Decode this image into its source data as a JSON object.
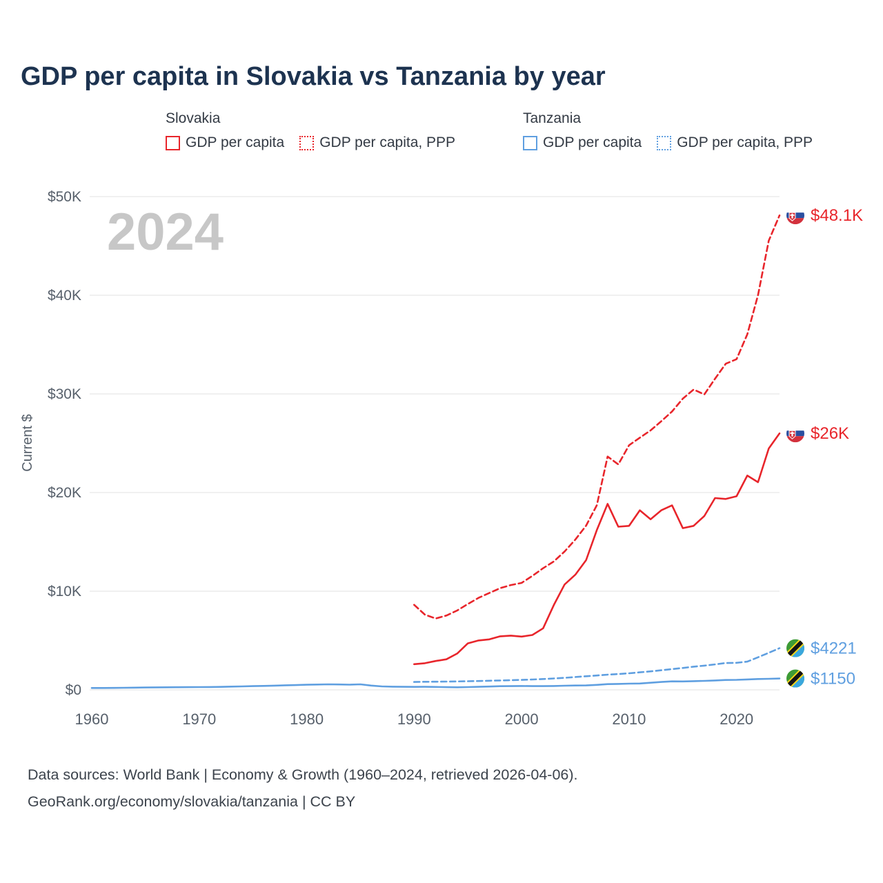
{
  "title": "GDP per capita in Slovakia vs Tanzania by year",
  "watermark": "2024",
  "colors": {
    "slovakia": "#e8252b",
    "tanzania": "#5f9fe0",
    "title": "#1d3350",
    "grid": "#e8e8e8",
    "tick_text": "#57606b",
    "watermark": "#c7c7c7"
  },
  "legend": {
    "groups": [
      {
        "country": "Slovakia",
        "color": "#e8252b",
        "items": [
          {
            "label": "GDP per capita",
            "style": "solid"
          },
          {
            "label": "GDP per capita, PPP",
            "style": "dotted"
          }
        ]
      },
      {
        "country": "Tanzania",
        "color": "#5f9fe0",
        "items": [
          {
            "label": "GDP per capita",
            "style": "solid"
          },
          {
            "label": "GDP per capita, PPP",
            "style": "dotted"
          }
        ]
      }
    ]
  },
  "chart_data": {
    "type": "line",
    "title": "GDP per capita in Slovakia vs Tanzania by year",
    "xlabel": "",
    "ylabel": "Current $",
    "ylim": [
      0,
      50000
    ],
    "xlim": [
      1958,
      2025
    ],
    "grid": "horizontal",
    "x_ticks": [
      1960,
      1970,
      1980,
      1990,
      2000,
      2010,
      2020
    ],
    "y_ticks": [
      {
        "value": 0,
        "label": "$0"
      },
      {
        "value": 10000,
        "label": "$10K"
      },
      {
        "value": 20000,
        "label": "$20K"
      },
      {
        "value": 30000,
        "label": "$30K"
      },
      {
        "value": 40000,
        "label": "$40K"
      },
      {
        "value": 50000,
        "label": "$50K"
      }
    ],
    "series": [
      {
        "id": "tanzania-gdp-ppp",
        "name": "Tanzania GDP per capita, PPP",
        "color": "#5f9fe0",
        "dash": "dashed",
        "flag": "tanzania",
        "start_year": 1990,
        "end_label": "$4221",
        "values": [
          800,
          818,
          828,
          838,
          852,
          872,
          898,
          922,
          948,
          978,
          1008,
          1052,
          1098,
          1152,
          1218,
          1298,
          1378,
          1458,
          1538,
          1598,
          1678,
          1778,
          1872,
          1988,
          2108,
          2218,
          2348,
          2458,
          2578,
          2718,
          2738,
          2858,
          3298,
          3758,
          4221
        ]
      },
      {
        "id": "tanzania-gdp",
        "name": "Tanzania GDP per capita",
        "color": "#5f9fe0",
        "dash": "solid",
        "flag": "tanzania",
        "start_year": 1960,
        "end_label": "$1150",
        "values": [
          190,
          186,
          199,
          213,
          224,
          236,
          249,
          256,
          264,
          271,
          281,
          287,
          301,
          329,
          351,
          379,
          401,
          429,
          459,
          481,
          519,
          539,
          561,
          546,
          521,
          558,
          431,
          352,
          321,
          309,
          301,
          311,
          291,
          272,
          262,
          281,
          309,
          339,
          369,
          381,
          391,
          381,
          379,
          391,
          419,
          441,
          451,
          501,
          579,
          599,
          629,
          641,
          719,
          799,
          859,
          851,
          879,
          909,
          949,
          999,
          1011,
          1059,
          1099,
          1121,
          1150
        ]
      },
      {
        "id": "slovakia-gdp-ppp",
        "name": "Slovakia GDP per capita, PPP",
        "color": "#e8252b",
        "dash": "dashed",
        "flag": "slovakia",
        "start_year": 1990,
        "end_label": "$48.1K",
        "values": [
          8620,
          7620,
          7230,
          7530,
          8040,
          8700,
          9330,
          9820,
          10310,
          10620,
          10840,
          11550,
          12330,
          13020,
          14020,
          15230,
          16640,
          18720,
          23650,
          22850,
          24800,
          25560,
          26300,
          27230,
          28220,
          29520,
          30440,
          29950,
          31540,
          33060,
          33520,
          36040,
          40010,
          45530,
          48100
        ]
      },
      {
        "id": "slovakia-gdp",
        "name": "Slovakia GDP per capita",
        "color": "#e8252b",
        "dash": "solid",
        "flag": "slovakia",
        "start_year": 1990,
        "end_label": "$26K",
        "values": [
          2600,
          2700,
          2920,
          3100,
          3680,
          4710,
          5010,
          5120,
          5430,
          5500,
          5400,
          5560,
          6240,
          8610,
          10680,
          11670,
          13150,
          16200,
          18850,
          16540,
          16620,
          18200,
          17290,
          18200,
          18700,
          16390,
          16620,
          17620,
          19440,
          19350,
          19620,
          21720,
          21050,
          24470,
          26000
        ]
      }
    ],
    "legend_position": "top"
  },
  "footer": {
    "line1": "Data sources: World Bank | Economy & Growth (1960–2024, retrieved 2026-04-06).",
    "line2": "GeoRank.org/economy/slovakia/tanzania | CC BY"
  }
}
